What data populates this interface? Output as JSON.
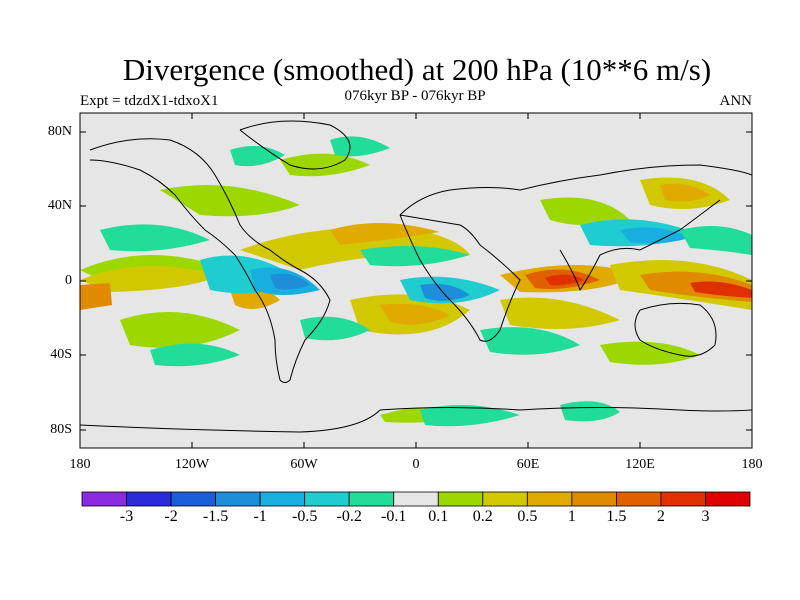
{
  "title": "Divergence (smoothed) at 200 hPa (10**6 m/s)",
  "subtitle": "076kyr BP - 076kyr BP",
  "expt": "Expt = tdzdX1-tdxoX1",
  "season": "ANN",
  "lat_labels": [
    "80N",
    "40N",
    "0",
    "40S",
    "80S"
  ],
  "lon_labels": [
    "180",
    "120W",
    "60W",
    "0",
    "60E",
    "120E",
    "180"
  ],
  "colorbar": {
    "labels": [
      "-3",
      "-2",
      "-1.5",
      "-1",
      "-0.5",
      "-0.2",
      "-0.1",
      "0.1",
      "0.2",
      "0.5",
      "1",
      "1.5",
      "2",
      "3"
    ],
    "colors": [
      "#8b2be0",
      "#2b2bdb",
      "#1a5fd8",
      "#1d8fd8",
      "#18aee0",
      "#1fccd0",
      "#22dc9a",
      "#e6e6e6",
      "#9cd800",
      "#d2c800",
      "#e0aa00",
      "#e08a00",
      "#e06000",
      "#e03000",
      "#e00000"
    ]
  },
  "colors": {
    "land_fill": "#e6e6e6",
    "coast": "#000000"
  }
}
